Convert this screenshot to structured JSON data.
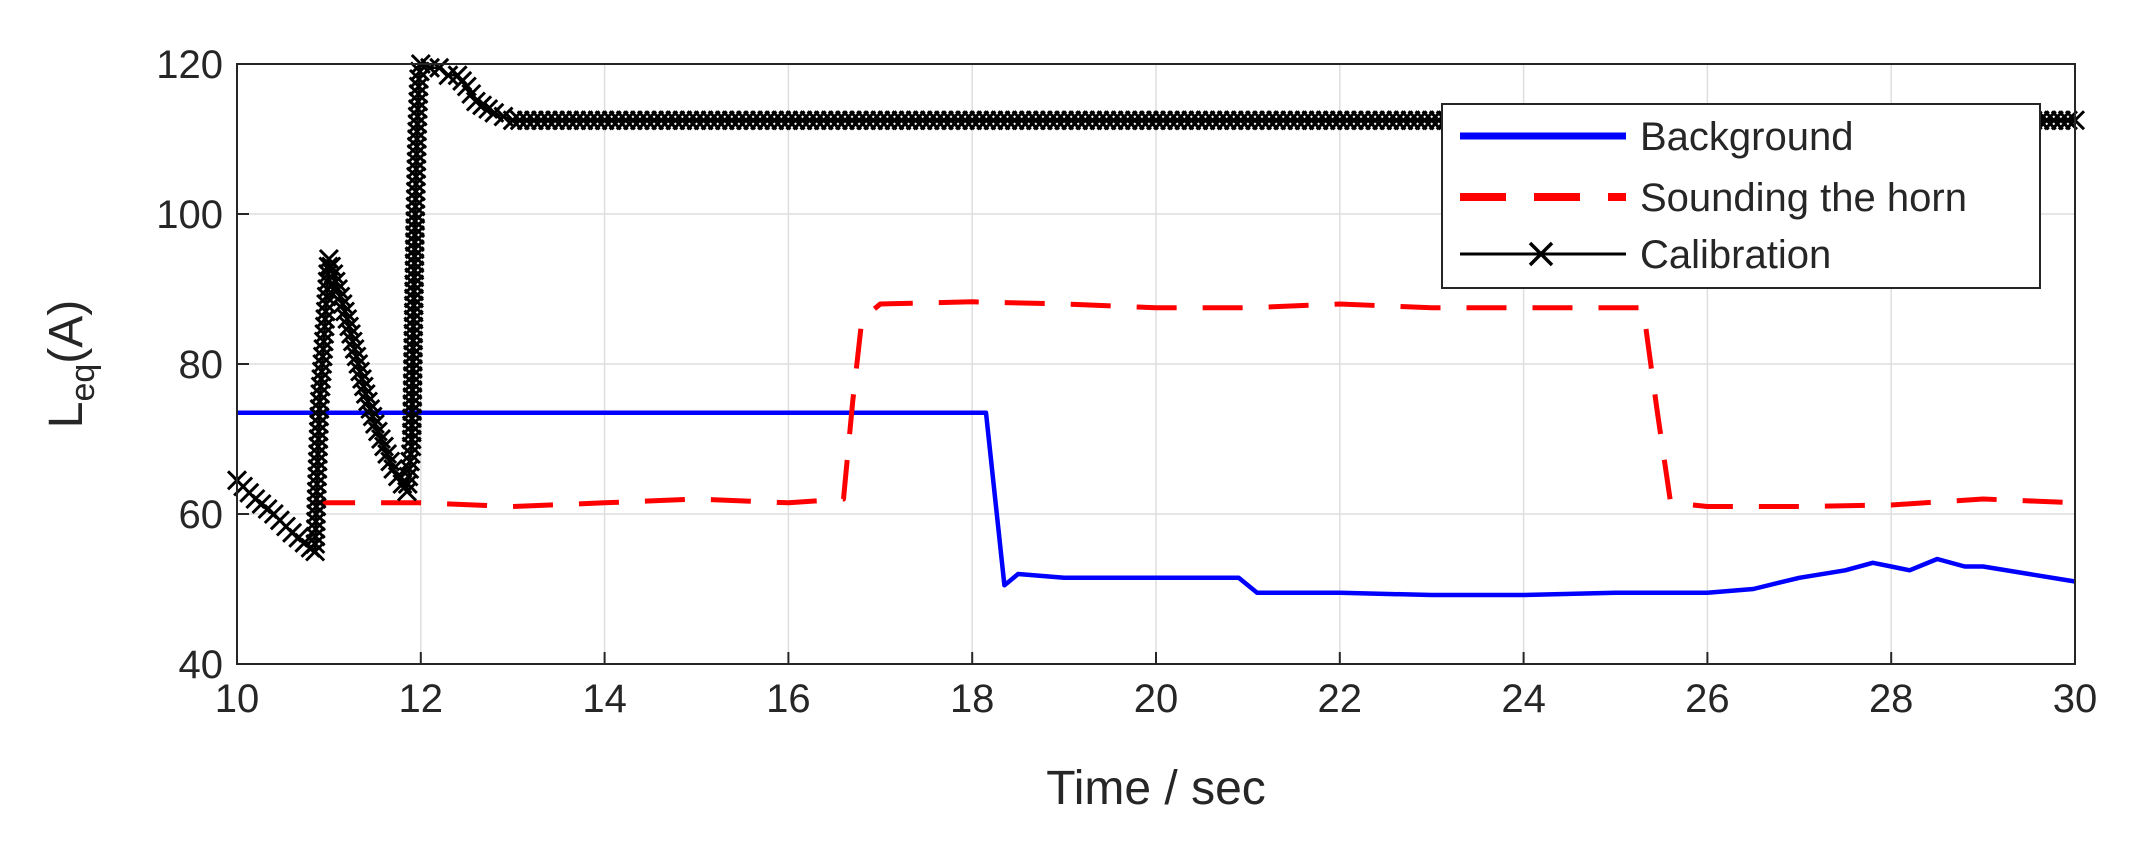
{
  "chart_data": {
    "type": "line",
    "title": "",
    "xlabel": "Time / sec",
    "ylabel": {
      "main": "L",
      "subscript": "eq",
      "suffix": "(A)"
    },
    "xlim": [
      10,
      30
    ],
    "ylim": [
      40,
      120
    ],
    "xticks": [
      10,
      12,
      14,
      16,
      18,
      20,
      22,
      24,
      26,
      28,
      30
    ],
    "yticks": [
      40,
      60,
      80,
      100,
      120
    ],
    "grid": true,
    "legend_position": "top-right",
    "series": [
      {
        "name": "Background",
        "color": "#0000ff",
        "style": "solid",
        "x": [
          10,
          11,
          12,
          13,
          14,
          15,
          16,
          17,
          18,
          18.15,
          18.25,
          18.35,
          18.5,
          19,
          19.5,
          20,
          20.5,
          20.9,
          21.0,
          21.1,
          22,
          23,
          24,
          25,
          26,
          26.5,
          27,
          27.5,
          27.8,
          28,
          28.2,
          28.5,
          28.8,
          29,
          29.5,
          30
        ],
        "y": [
          73.5,
          73.5,
          73.5,
          73.5,
          73.5,
          73.5,
          73.5,
          73.5,
          73.5,
          73.5,
          62,
          50.5,
          52,
          51.5,
          51.5,
          51.5,
          51.5,
          51.5,
          50.5,
          49.5,
          49.5,
          49.2,
          49.2,
          49.5,
          49.5,
          50,
          51.5,
          52.5,
          53.5,
          53,
          52.5,
          54,
          53,
          53,
          52,
          51
        ]
      },
      {
        "name": "Sounding the horn",
        "color": "#ff0000",
        "style": "dashed",
        "x": [
          10.85,
          11,
          12,
          13,
          14,
          15,
          16,
          16.6,
          16.7,
          16.8,
          17,
          18,
          19,
          20,
          21,
          22,
          23,
          24,
          25,
          25.3,
          25.45,
          25.6,
          26,
          27,
          28,
          29,
          30
        ],
        "y": [
          61.5,
          61.5,
          61.5,
          61,
          61.5,
          62,
          61.5,
          62,
          75,
          86,
          88,
          88.3,
          88,
          87.5,
          87.5,
          88,
          87.5,
          87.5,
          87.5,
          87.5,
          74,
          61.5,
          61,
          61,
          61.2,
          62,
          61.5
        ]
      },
      {
        "name": "Calibration",
        "color": "#000000",
        "style": "solid-x-marker",
        "x": [
          10,
          10.2,
          10.4,
          10.6,
          10.8,
          10.85,
          10.87,
          10.9,
          10.95,
          11.0,
          11.1,
          11.2,
          11.3,
          11.4,
          11.5,
          11.6,
          11.7,
          11.8,
          11.85,
          11.9,
          11.92,
          11.94,
          11.96,
          11.98,
          12.0,
          12.1,
          12.2,
          12.3,
          12.4,
          12.5,
          12.6,
          12.8,
          13,
          14,
          15,
          16,
          17,
          18,
          19,
          20,
          21,
          22,
          23,
          24,
          25,
          26,
          27,
          28,
          29,
          30
        ],
        "y": [
          64.5,
          62,
          60,
          57.5,
          55.5,
          55,
          64,
          75,
          84,
          94,
          90,
          86,
          81,
          76,
          72,
          69,
          66,
          64,
          63,
          69,
          85,
          100,
          111,
          118,
          120,
          119.5,
          119.5,
          118.5,
          118.5,
          117,
          115,
          113.5,
          112.5,
          112.5,
          112.5,
          112.5,
          112.5,
          112.5,
          112.5,
          112.5,
          112.5,
          112.5,
          112.5,
          112.5,
          112.5,
          112.5,
          112.5,
          112.5,
          112.5,
          112.5
        ]
      }
    ]
  }
}
